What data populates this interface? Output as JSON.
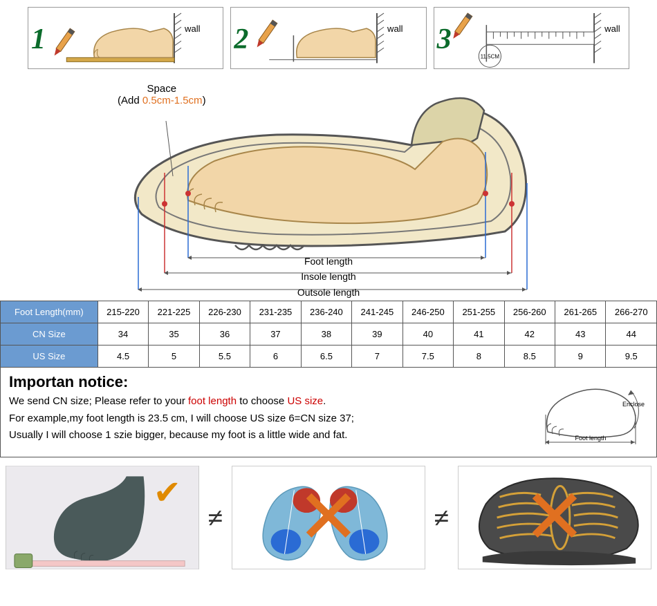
{
  "steps": {
    "wall_label": "wall",
    "step3_measure": "11.5CM"
  },
  "diagram": {
    "space_title": "Space",
    "space_prefix": "(Add ",
    "space_range": "0.5cm-1.5cm",
    "space_suffix": ")",
    "foot_length": "Foot length",
    "insole_length": "Insole length",
    "outsole_length": "Outsole length"
  },
  "table": {
    "headers": [
      "Foot Length(mm)",
      "CN Size",
      "US Size"
    ],
    "columns": [
      "215-220",
      "221-225",
      "226-230",
      "231-235",
      "236-240",
      "241-245",
      "246-250",
      "251-255",
      "256-260",
      "261-265",
      "266-270"
    ],
    "cn": [
      "34",
      "35",
      "36",
      "37",
      "38",
      "39",
      "40",
      "41",
      "42",
      "43",
      "44"
    ],
    "us": [
      "4.5",
      "5",
      "5.5",
      "6",
      "6.5",
      "7",
      "7.5",
      "8",
      "8.5",
      "9",
      "9.5"
    ]
  },
  "notice": {
    "title": "Importan notice:",
    "line1a": "We send CN size; Please refer to your ",
    "line1_hl": "foot length",
    "line1b": " to choose ",
    "line1_hl2": "US size",
    "line1c": ".",
    "line2": "For example,my foot length is 23.5 cm, I will choose US size 6=CN size 37;",
    "line3": "Usually I will choose 1 szie bigger, because my foot is a little wide and fat.",
    "icon_enclose": "Enclose",
    "icon_footlen": "Foot length"
  },
  "compare": {
    "neq": "≠",
    "check": "✔",
    "cross": "✕"
  },
  "colors": {
    "header_bg": "#6b9bd1",
    "orange": "#e07020",
    "red": "#c00",
    "green": "#0b6b2b",
    "foot_fill": "#f2d6a8",
    "shoe_fill": "#f2e8c8",
    "pencil_body": "#e8a24a",
    "pencil_tip": "#c0392b"
  }
}
